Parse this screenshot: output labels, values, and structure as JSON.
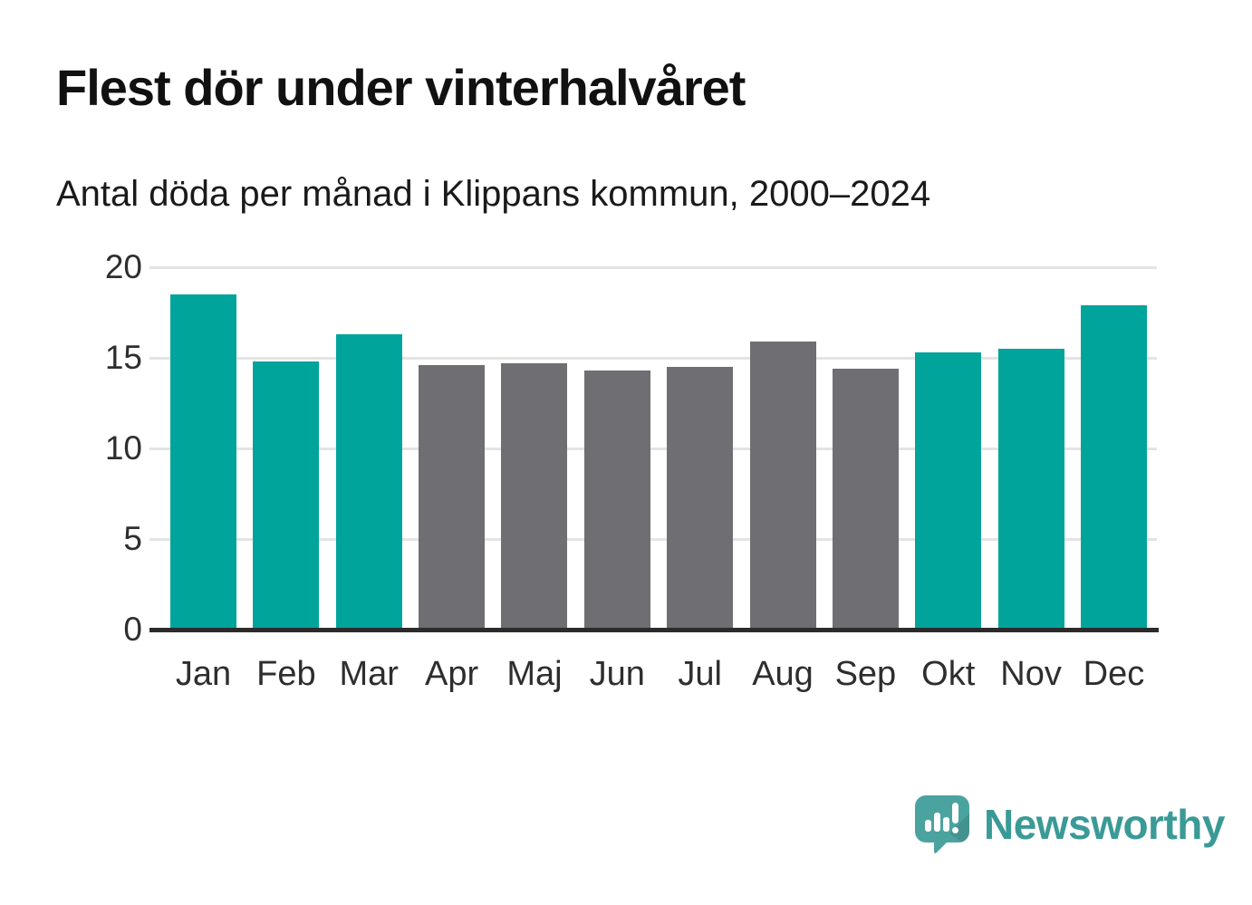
{
  "header": {
    "title": "Flest dör under vinterhalvåret",
    "subtitle": "Antal döda per månad i Klippans kommun, 2000–2024"
  },
  "chart_data": {
    "type": "bar",
    "title": "Flest dör under vinterhalvåret",
    "subtitle": "Antal döda per månad i Klippans kommun, 2000–2024",
    "categories": [
      "Jan",
      "Feb",
      "Mar",
      "Apr",
      "Maj",
      "Jun",
      "Jul",
      "Aug",
      "Sep",
      "Okt",
      "Nov",
      "Dec"
    ],
    "values": [
      18.5,
      14.8,
      16.3,
      14.6,
      14.7,
      14.3,
      14.5,
      15.9,
      14.4,
      15.3,
      15.5,
      17.9
    ],
    "bar_colors": [
      "#00a49b",
      "#00a49b",
      "#00a49b",
      "#6e6e73",
      "#6e6e73",
      "#6e6e73",
      "#6e6e73",
      "#6e6e73",
      "#6e6e73",
      "#00a49b",
      "#00a49b",
      "#00a49b"
    ],
    "color_legend": {
      "winter_months": "#00a49b",
      "summer_months": "#6e6e73"
    },
    "xlabel": "",
    "ylabel": "",
    "yticks": [
      0,
      5,
      10,
      15,
      20
    ],
    "ylim": [
      0,
      20
    ],
    "grid": true,
    "gridline_color": "#e4e4e4",
    "axis_color": "#2b2b2b"
  },
  "branding": {
    "logo_text": "Newsworthy",
    "logo_icon": "newsworthy-speech-bubble-chart-icon",
    "logo_color": "#3a9a96",
    "logo_bubble_color": "#4ba3a0"
  }
}
